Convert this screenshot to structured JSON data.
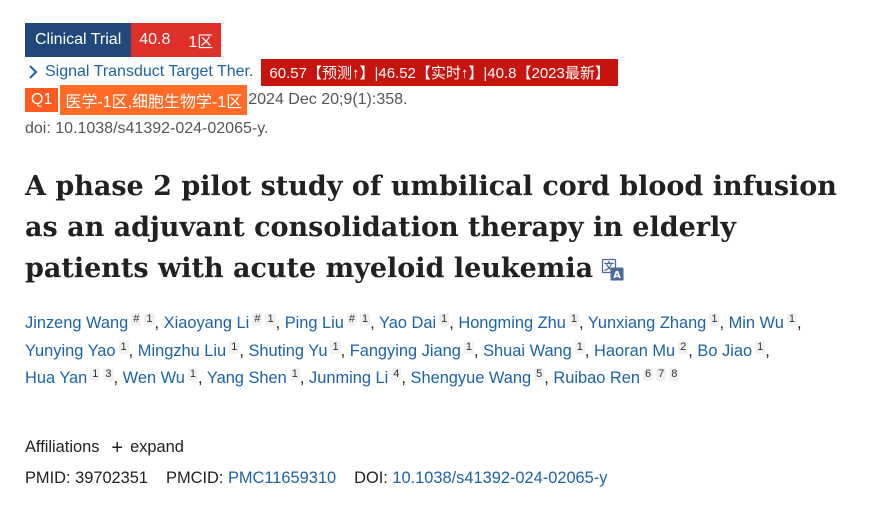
{
  "badges": {
    "type_label": "Clinical Trial",
    "impact_factor": "40.8",
    "zone": "1区"
  },
  "journal": {
    "name": "Signal Transduct Target Ther.",
    "metrics_tag": "60.57【预测↑】|46.52【实时↑】|40.8【2023最新】"
  },
  "classification": {
    "quartile": "Q1",
    "categories": "医学-1区,细胞生物学-1区",
    "citation": "2024 Dec 20;9(1):358."
  },
  "doi_text": "doi: 10.1038/s41392-024-02065-y.",
  "title": "A phase 2 pilot study of umbilical cord blood infusion as an adjuvant consolidation therapy in elderly patients with acute myeloid leukemia",
  "authors": [
    {
      "name": "Jinzeng Wang",
      "sups": [
        "#",
        "1"
      ]
    },
    {
      "name": "Xiaoyang Li",
      "sups": [
        "#",
        "1"
      ]
    },
    {
      "name": "Ping Liu",
      "sups": [
        "#",
        "1"
      ]
    },
    {
      "name": "Yao Dai",
      "sups": [
        "1"
      ]
    },
    {
      "name": "Hongming Zhu",
      "sups": [
        "1"
      ]
    },
    {
      "name": "Yunxiang Zhang",
      "sups": [
        "1"
      ]
    },
    {
      "name": "Min Wu",
      "sups": [
        "1"
      ]
    },
    {
      "name": "Yunying Yao",
      "sups": [
        "1"
      ]
    },
    {
      "name": "Mingzhu Liu",
      "sups": [
        "1"
      ]
    },
    {
      "name": "Shuting Yu",
      "sups": [
        "1"
      ]
    },
    {
      "name": "Fangying Jiang",
      "sups": [
        "1"
      ]
    },
    {
      "name": "Shuai Wang",
      "sups": [
        "1"
      ]
    },
    {
      "name": "Haoran Mu",
      "sups": [
        "2"
      ]
    },
    {
      "name": "Bo Jiao",
      "sups": [
        "1"
      ]
    },
    {
      "name": "Hua Yan",
      "sups": [
        "1",
        "3"
      ]
    },
    {
      "name": "Wen Wu",
      "sups": [
        "1"
      ]
    },
    {
      "name": "Yang Shen",
      "sups": [
        "1"
      ]
    },
    {
      "name": "Junming Li",
      "sups": [
        "4"
      ]
    },
    {
      "name": "Shengyue Wang",
      "sups": [
        "5"
      ]
    },
    {
      "name": "Ruibao Ren",
      "sups": [
        "6",
        "7",
        "8"
      ]
    }
  ],
  "affiliations": {
    "label": "Affiliations",
    "expand_label": "expand"
  },
  "identifiers": {
    "pmid_label": "PMID:",
    "pmid": "39702351",
    "pmcid_label": "PMCID:",
    "pmcid": "PMC11659310",
    "doi_label": "DOI:",
    "doi": "10.1038/s41392-024-02065-y"
  },
  "colors": {
    "link": "#1a63a8",
    "clinical_trial_badge": "#20487a",
    "impact_badge": "#e0302a",
    "metrics_tag": "#c8140f",
    "quartile_tag": "#ff5a1f"
  },
  "icons": {
    "journal_chevron": "chevron-right-icon",
    "title_translate": "translate-icon",
    "affiliations_expand": "plus-icon"
  }
}
